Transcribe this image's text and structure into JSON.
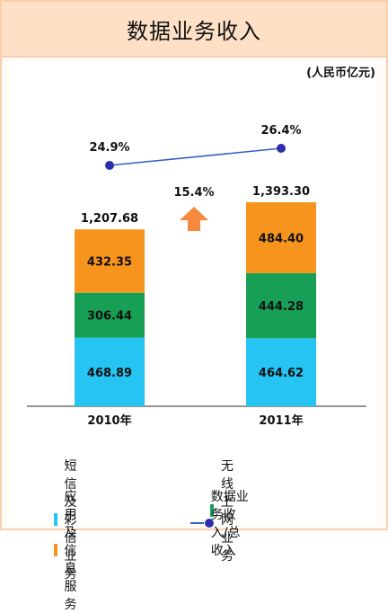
{
  "header": {
    "title": "数据业务收入"
  },
  "unit_label": "(人民币亿元)",
  "colors": {
    "sms": "#25c4f2",
    "wireless": "#17a055",
    "apps": "#f7941d",
    "ratio_line": "#2e5fbf",
    "ratio_point": "#2b2fae",
    "growth_arrow": "#f58a3f"
  },
  "growth": {
    "label": "15.4%",
    "icon": "up-arrow-icon"
  },
  "chart_data": {
    "type": "bar",
    "stacked": true,
    "categories": [
      "2010年",
      "2011年"
    ],
    "series": [
      {
        "name": "短信及彩信业务",
        "values": [
          468.89,
          464.62
        ],
        "labels": [
          "468.89",
          "464.62"
        ]
      },
      {
        "name": "无线上网业务",
        "values": [
          306.44,
          444.28
        ],
        "labels": [
          "306.44",
          "444.28"
        ]
      },
      {
        "name": "应用及信息服务",
        "values": [
          432.35,
          484.4
        ],
        "labels": [
          "432.35",
          "484.40"
        ]
      }
    ],
    "totals": [
      1207.68,
      1393.3
    ],
    "total_labels": [
      "1,207.68",
      "1,393.30"
    ],
    "line_series": {
      "name": "数据业务收入/总收入",
      "values": [
        24.9,
        26.4
      ],
      "labels": [
        "24.9%",
        "26.4%"
      ]
    },
    "ylim": [
      0,
      1700
    ],
    "legend_position": "bottom",
    "grid": false
  },
  "legend": [
    {
      "label": "短信及彩信业务",
      "kind": "box",
      "color_key": "sms"
    },
    {
      "label": "无线上网业务",
      "kind": "box",
      "color_key": "wireless"
    },
    {
      "label": "应用及信息服务",
      "kind": "box",
      "color_key": "apps"
    },
    {
      "label": "数据业务收入/总收入",
      "kind": "line",
      "color_key": "ratio_line"
    }
  ]
}
